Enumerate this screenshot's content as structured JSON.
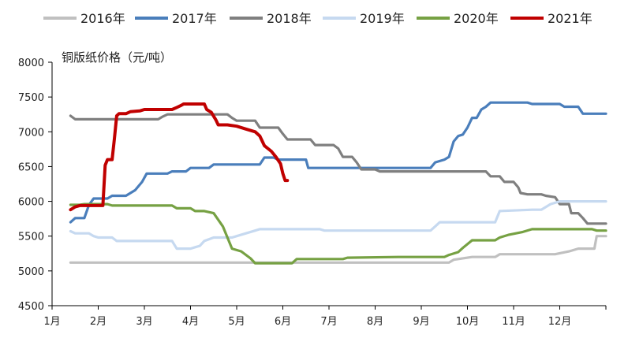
{
  "chart_data": {
    "type": "line",
    "ylabel": "铜版纸价格（元/吨）",
    "ylim": [
      4500,
      8000
    ],
    "yticks": [
      4500,
      5000,
      5500,
      6000,
      6500,
      7000,
      7500,
      8000
    ],
    "xlim": [
      1,
      13
    ],
    "xticks": [
      1,
      2,
      3,
      4,
      5,
      6,
      7,
      8,
      9,
      10,
      11,
      12
    ],
    "xtick_labels": [
      "1月",
      "2月",
      "3月",
      "4月",
      "5月",
      "6月",
      "7月",
      "8月",
      "9月",
      "10月",
      "11月",
      "12月"
    ],
    "grid": false,
    "legend_position": "top",
    "series": [
      {
        "name": "2016年",
        "color": "#c0c0c0",
        "points": [
          [
            1.4,
            5120
          ],
          [
            9.6,
            5120
          ],
          [
            9.7,
            5160
          ],
          [
            10.1,
            5200
          ],
          [
            10.6,
            5200
          ],
          [
            10.7,
            5240
          ],
          [
            11.9,
            5240
          ],
          [
            12.2,
            5280
          ],
          [
            12.4,
            5320
          ],
          [
            12.75,
            5320
          ],
          [
            12.8,
            5500
          ],
          [
            13.0,
            5500
          ]
        ]
      },
      {
        "name": "2017年",
        "color": "#4a7ebb",
        "points": [
          [
            1.4,
            5700
          ],
          [
            1.5,
            5760
          ],
          [
            1.7,
            5760
          ],
          [
            1.8,
            5950
          ],
          [
            1.9,
            6040
          ],
          [
            2.2,
            6040
          ],
          [
            2.3,
            6080
          ],
          [
            2.6,
            6080
          ],
          [
            2.8,
            6160
          ],
          [
            2.95,
            6280
          ],
          [
            3.05,
            6400
          ],
          [
            3.5,
            6400
          ],
          [
            3.6,
            6430
          ],
          [
            3.9,
            6430
          ],
          [
            4.0,
            6480
          ],
          [
            4.4,
            6480
          ],
          [
            4.5,
            6530
          ],
          [
            5.5,
            6530
          ],
          [
            5.6,
            6630
          ],
          [
            5.8,
            6630
          ],
          [
            5.9,
            6600
          ],
          [
            6.5,
            6600
          ],
          [
            6.55,
            6480
          ],
          [
            9.2,
            6480
          ],
          [
            9.3,
            6560
          ],
          [
            9.5,
            6600
          ],
          [
            9.6,
            6640
          ],
          [
            9.7,
            6860
          ],
          [
            9.8,
            6940
          ],
          [
            9.9,
            6960
          ],
          [
            10.0,
            7060
          ],
          [
            10.1,
            7200
          ],
          [
            10.2,
            7200
          ],
          [
            10.3,
            7320
          ],
          [
            10.4,
            7360
          ],
          [
            10.5,
            7420
          ],
          [
            11.3,
            7420
          ],
          [
            11.4,
            7400
          ],
          [
            12.0,
            7400
          ],
          [
            12.1,
            7360
          ],
          [
            12.4,
            7360
          ],
          [
            12.5,
            7260
          ],
          [
            13.0,
            7260
          ]
        ]
      },
      {
        "name": "2018年",
        "color": "#7f7f7f",
        "points": [
          [
            1.4,
            7230
          ],
          [
            1.5,
            7180
          ],
          [
            3.3,
            7180
          ],
          [
            3.4,
            7220
          ],
          [
            3.5,
            7250
          ],
          [
            4.8,
            7250
          ],
          [
            4.9,
            7200
          ],
          [
            5.0,
            7160
          ],
          [
            5.4,
            7160
          ],
          [
            5.5,
            7060
          ],
          [
            5.9,
            7060
          ],
          [
            6.0,
            6970
          ],
          [
            6.1,
            6890
          ],
          [
            6.6,
            6890
          ],
          [
            6.7,
            6810
          ],
          [
            7.1,
            6810
          ],
          [
            7.2,
            6760
          ],
          [
            7.3,
            6640
          ],
          [
            7.5,
            6640
          ],
          [
            7.6,
            6560
          ],
          [
            7.7,
            6460
          ],
          [
            8.0,
            6460
          ],
          [
            8.1,
            6430
          ],
          [
            10.4,
            6430
          ],
          [
            10.5,
            6360
          ],
          [
            10.7,
            6360
          ],
          [
            10.8,
            6280
          ],
          [
            11.0,
            6280
          ],
          [
            11.1,
            6200
          ],
          [
            11.15,
            6120
          ],
          [
            11.3,
            6100
          ],
          [
            11.6,
            6100
          ],
          [
            11.7,
            6080
          ],
          [
            11.9,
            6060
          ],
          [
            12.0,
            5960
          ],
          [
            12.2,
            5960
          ],
          [
            12.25,
            5830
          ],
          [
            12.4,
            5830
          ],
          [
            12.5,
            5760
          ],
          [
            12.6,
            5680
          ],
          [
            13.0,
            5680
          ]
        ]
      },
      {
        "name": "2019年",
        "color": "#c6d9f0",
        "points": [
          [
            1.4,
            5570
          ],
          [
            1.5,
            5540
          ],
          [
            1.8,
            5540
          ],
          [
            1.9,
            5500
          ],
          [
            2.0,
            5480
          ],
          [
            2.3,
            5480
          ],
          [
            2.4,
            5430
          ],
          [
            3.6,
            5430
          ],
          [
            3.7,
            5320
          ],
          [
            4.0,
            5320
          ],
          [
            4.1,
            5340
          ],
          [
            4.2,
            5360
          ],
          [
            4.3,
            5430
          ],
          [
            4.5,
            5480
          ],
          [
            4.9,
            5480
          ],
          [
            5.0,
            5500
          ],
          [
            5.4,
            5580
          ],
          [
            5.5,
            5600
          ],
          [
            6.8,
            5600
          ],
          [
            6.9,
            5580
          ],
          [
            9.2,
            5580
          ],
          [
            9.3,
            5640
          ],
          [
            9.4,
            5700
          ],
          [
            10.6,
            5700
          ],
          [
            10.7,
            5860
          ],
          [
            11.4,
            5880
          ],
          [
            11.6,
            5880
          ],
          [
            11.8,
            5960
          ],
          [
            12.0,
            6000
          ],
          [
            13.0,
            6000
          ]
        ]
      },
      {
        "name": "2020年",
        "color": "#76a143",
        "points": [
          [
            1.4,
            5950
          ],
          [
            1.6,
            5950
          ],
          [
            1.7,
            5960
          ],
          [
            2.2,
            5960
          ],
          [
            2.3,
            5940
          ],
          [
            3.6,
            5940
          ],
          [
            3.7,
            5900
          ],
          [
            4.0,
            5900
          ],
          [
            4.1,
            5860
          ],
          [
            4.3,
            5860
          ],
          [
            4.5,
            5830
          ],
          [
            4.7,
            5640
          ],
          [
            4.8,
            5480
          ],
          [
            4.9,
            5320
          ],
          [
            5.1,
            5280
          ],
          [
            5.3,
            5180
          ],
          [
            5.4,
            5110
          ],
          [
            6.2,
            5110
          ],
          [
            6.3,
            5170
          ],
          [
            7.3,
            5170
          ],
          [
            7.4,
            5190
          ],
          [
            8.5,
            5200
          ],
          [
            9.5,
            5200
          ],
          [
            9.6,
            5230
          ],
          [
            9.8,
            5270
          ],
          [
            9.9,
            5330
          ],
          [
            10.1,
            5440
          ],
          [
            10.6,
            5440
          ],
          [
            10.7,
            5480
          ],
          [
            10.9,
            5520
          ],
          [
            11.2,
            5560
          ],
          [
            11.4,
            5600
          ],
          [
            12.7,
            5600
          ],
          [
            12.8,
            5580
          ],
          [
            13.0,
            5580
          ]
        ]
      },
      {
        "name": "2021年",
        "color": "#c00000",
        "points": [
          [
            1.4,
            5880
          ],
          [
            1.5,
            5920
          ],
          [
            1.6,
            5940
          ],
          [
            2.1,
            5940
          ],
          [
            2.15,
            6520
          ],
          [
            2.2,
            6600
          ],
          [
            2.3,
            6600
          ],
          [
            2.35,
            6900
          ],
          [
            2.4,
            7230
          ],
          [
            2.45,
            7260
          ],
          [
            2.6,
            7260
          ],
          [
            2.7,
            7290
          ],
          [
            2.9,
            7300
          ],
          [
            3.0,
            7320
          ],
          [
            3.6,
            7320
          ],
          [
            3.7,
            7350
          ],
          [
            3.8,
            7380
          ],
          [
            3.85,
            7400
          ],
          [
            4.3,
            7400
          ],
          [
            4.35,
            7320
          ],
          [
            4.45,
            7280
          ],
          [
            4.55,
            7170
          ],
          [
            4.6,
            7100
          ],
          [
            4.8,
            7100
          ],
          [
            5.0,
            7080
          ],
          [
            5.2,
            7040
          ],
          [
            5.4,
            7000
          ],
          [
            5.5,
            6940
          ],
          [
            5.6,
            6800
          ],
          [
            5.75,
            6720
          ],
          [
            5.85,
            6640
          ],
          [
            5.95,
            6540
          ],
          [
            6.0,
            6400
          ],
          [
            6.05,
            6300
          ],
          [
            6.1,
            6300
          ]
        ]
      }
    ]
  }
}
